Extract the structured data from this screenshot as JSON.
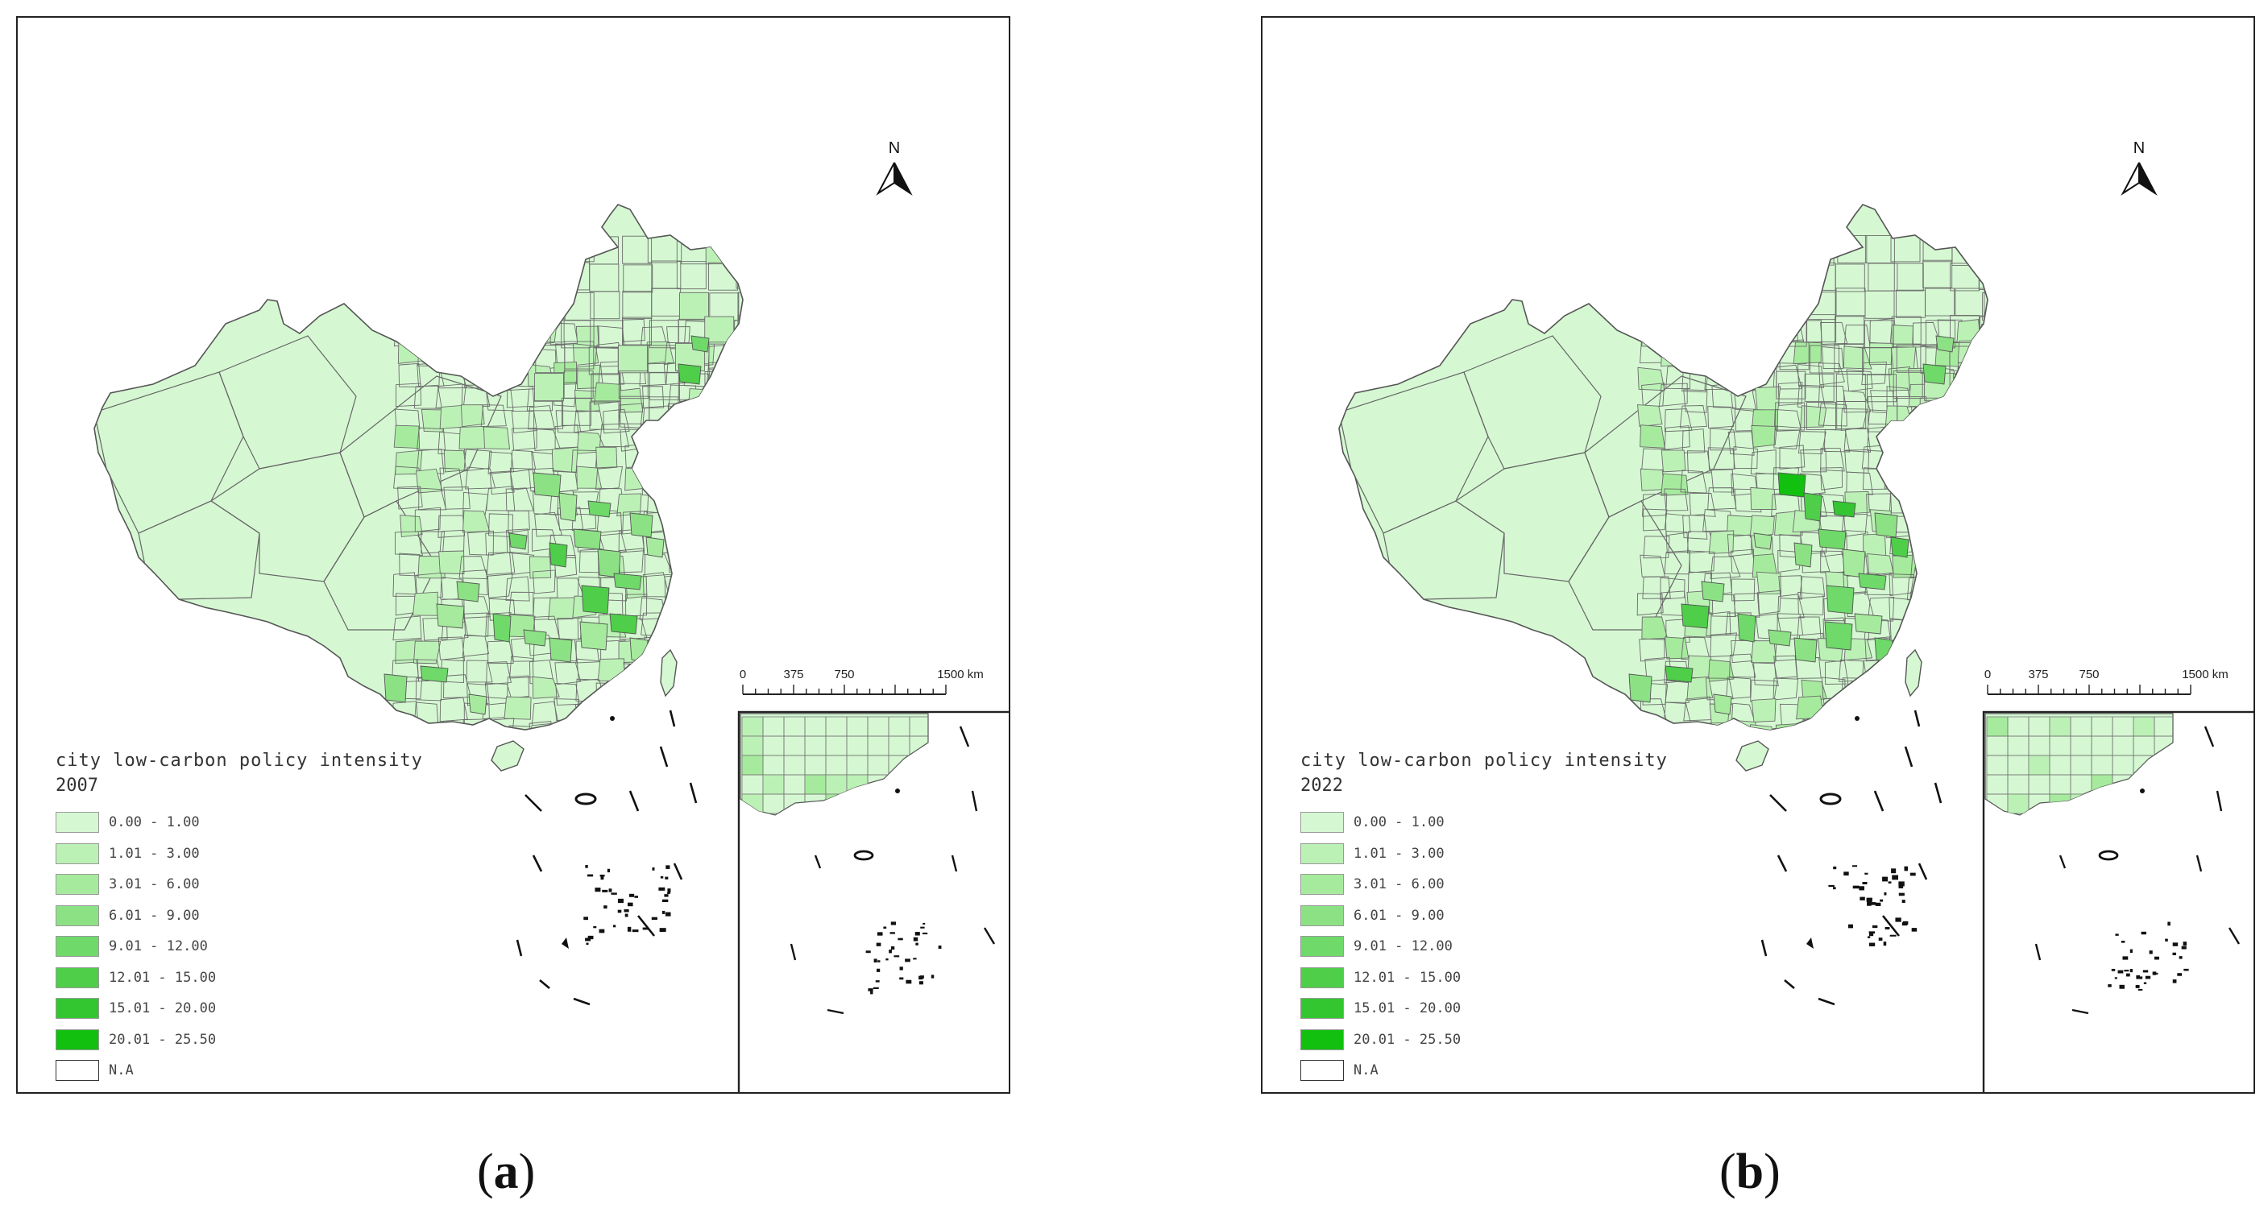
{
  "legend_colors": [
    "#d5f8d2",
    "#bcf1b6",
    "#a6eb9d",
    "#8de185",
    "#6fd96a",
    "#4fce4a",
    "#34c631",
    "#12c010"
  ],
  "legend_na_color": "#ffffff",
  "legend_labels": [
    "0.00 - 1.00",
    "1.01 - 3.00",
    "3.01 - 6.00",
    "6.01 - 9.00",
    "9.01 - 12.00",
    "12.01 - 15.00",
    "15.01 - 20.00",
    "20.01 - 25.50",
    "N.A"
  ],
  "scale_ticks": [
    "0",
    "375",
    "750",
    "1500 km"
  ],
  "north_label": "N",
  "panels": [
    {
      "legend_title": "city low-carbon policy intensity",
      "year": "2007",
      "caption_open": "(",
      "caption_letter": "a",
      "caption_close": ")",
      "highlight_class_index": [
        4,
        5,
        3,
        2,
        4,
        3,
        5,
        3,
        4,
        2,
        3,
        5,
        4,
        3,
        2,
        4,
        3,
        5,
        2,
        3,
        4,
        2,
        3,
        2
      ]
    },
    {
      "legend_title": "city low-carbon policy intensity",
      "year": "2022",
      "caption_open": "(",
      "caption_letter": "b",
      "caption_close": ")",
      "highlight_class_index": [
        3,
        4,
        7,
        5,
        6,
        4,
        3,
        2,
        4,
        5,
        3,
        4,
        2,
        3,
        5,
        4,
        3,
        2,
        4,
        3,
        5,
        2,
        3,
        4
      ]
    }
  ]
}
